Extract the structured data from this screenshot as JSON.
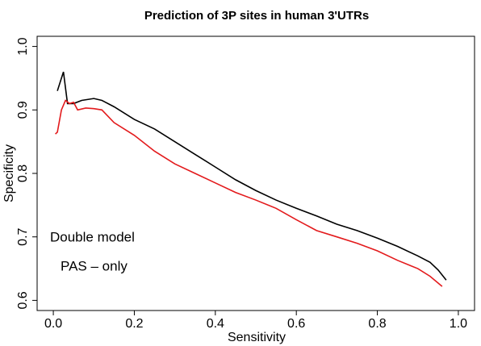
{
  "chart_data": {
    "type": "line",
    "title": "Prediction of 3P sites in human 3'UTRs",
    "xlabel": "Sensitivity",
    "ylabel": "Specificity",
    "xlim": [
      -0.04,
      1.04
    ],
    "ylim": [
      0.584,
      1.016
    ],
    "xticks": [
      {
        "value": 0,
        "label": "0.0"
      },
      0.2,
      0.4,
      0.6,
      0.8,
      {
        "value": 1,
        "label": "1.0"
      }
    ],
    "yticks": [
      0.6,
      0.7,
      0.8,
      0.9,
      {
        "value": 1,
        "label": "1.0"
      }
    ],
    "legend": "left",
    "series": [
      {
        "name": "Double model",
        "color": "#000000",
        "x": [
          0.01,
          0.025,
          0.035,
          0.05,
          0.07,
          0.1,
          0.12,
          0.15,
          0.2,
          0.25,
          0.3,
          0.35,
          0.4,
          0.45,
          0.5,
          0.55,
          0.6,
          0.65,
          0.7,
          0.75,
          0.8,
          0.85,
          0.9,
          0.93,
          0.95,
          0.97
        ],
        "values": [
          0.93,
          0.96,
          0.91,
          0.91,
          0.915,
          0.918,
          0.915,
          0.905,
          0.885,
          0.87,
          0.85,
          0.83,
          0.81,
          0.79,
          0.773,
          0.758,
          0.745,
          0.733,
          0.72,
          0.71,
          0.698,
          0.685,
          0.67,
          0.66,
          0.648,
          0.632
        ]
      },
      {
        "name": "PAS – only",
        "color": "#e31a1c",
        "x": [
          0.005,
          0.01,
          0.02,
          0.03,
          0.04,
          0.05,
          0.06,
          0.08,
          0.1,
          0.12,
          0.15,
          0.2,
          0.25,
          0.3,
          0.35,
          0.4,
          0.45,
          0.5,
          0.55,
          0.6,
          0.65,
          0.7,
          0.75,
          0.8,
          0.85,
          0.9,
          0.93,
          0.96
        ],
        "values": [
          0.862,
          0.865,
          0.9,
          0.915,
          0.91,
          0.912,
          0.9,
          0.903,
          0.902,
          0.9,
          0.88,
          0.86,
          0.835,
          0.815,
          0.8,
          0.785,
          0.77,
          0.758,
          0.745,
          0.727,
          0.71,
          0.7,
          0.69,
          0.678,
          0.663,
          0.65,
          0.638,
          0.622
        ]
      }
    ]
  }
}
